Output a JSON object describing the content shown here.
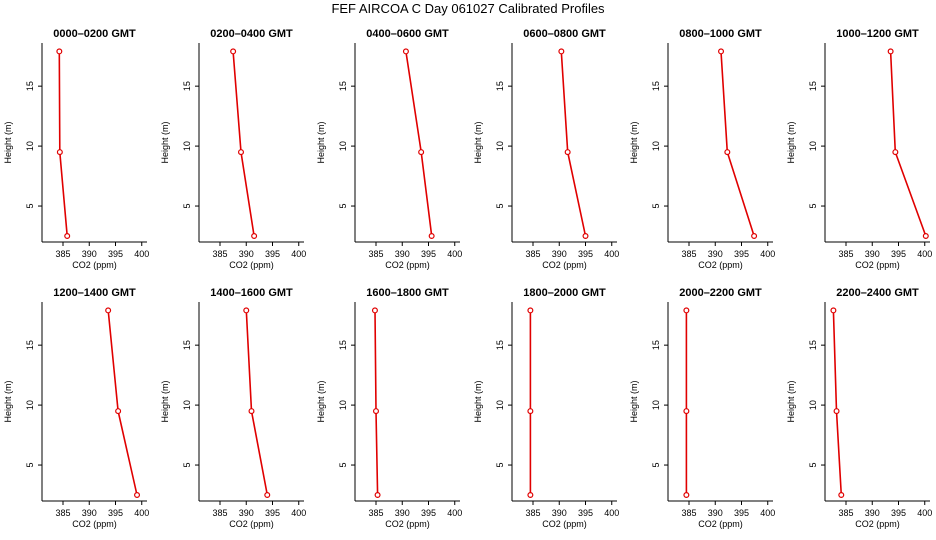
{
  "title": "FEF AIRCOA C  Day 061027  Calibrated Profiles",
  "chart_data": {
    "type": "line",
    "xlabel": "CO2 (ppm)",
    "ylabel": "Height (m)",
    "xlim": [
      381,
      401
    ],
    "ylim": [
      2,
      18.6
    ],
    "x_ticks": [
      385,
      390,
      395,
      400
    ],
    "y_ticks": [
      5,
      10,
      15
    ],
    "heights": [
      17.9,
      9.5,
      2.5
    ],
    "colors": {
      "line": "#e00000",
      "marker": "#e00000",
      "axis": "#000000"
    },
    "panels": [
      {
        "title": "0000–0200 GMT",
        "co2": [
          384.3,
          384.4,
          385.8
        ]
      },
      {
        "title": "0200–0400 GMT",
        "co2": [
          387.5,
          389.0,
          391.5
        ]
      },
      {
        "title": "0400–0600 GMT",
        "co2": [
          390.7,
          393.6,
          395.6
        ]
      },
      {
        "title": "0600–0800 GMT",
        "co2": [
          390.4,
          391.6,
          395.0
        ]
      },
      {
        "title": "0800–1000 GMT",
        "co2": [
          391.1,
          392.3,
          397.4
        ]
      },
      {
        "title": "1000–1200 GMT",
        "co2": [
          393.5,
          394.4,
          400.2
        ]
      },
      {
        "title": "1200–1400 GMT",
        "co2": [
          393.6,
          395.5,
          399.1
        ]
      },
      {
        "title": "1400–1600 GMT",
        "co2": [
          390.0,
          391.0,
          394.0
        ]
      },
      {
        "title": "1600–1800 GMT",
        "co2": [
          384.8,
          385.0,
          385.3
        ]
      },
      {
        "title": "1800–2000 GMT",
        "co2": [
          384.5,
          384.5,
          384.5
        ]
      },
      {
        "title": "2000–2200 GMT",
        "co2": [
          384.5,
          384.5,
          384.5
        ]
      },
      {
        "title": "2200–2400 GMT",
        "co2": [
          382.6,
          383.2,
          384.1
        ]
      }
    ]
  }
}
